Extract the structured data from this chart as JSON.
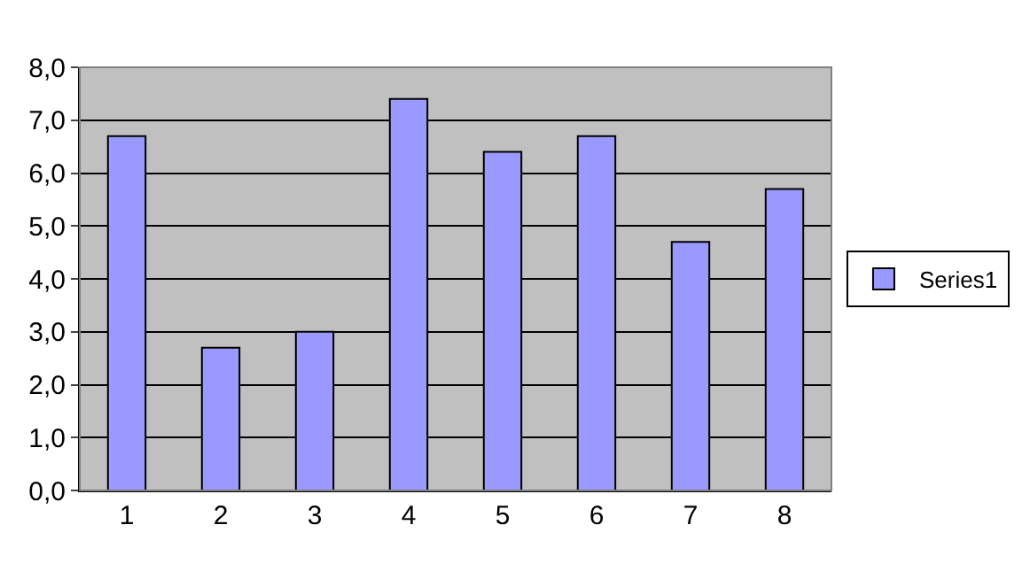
{
  "chart_data": {
    "type": "bar",
    "categories": [
      "1",
      "2",
      "3",
      "4",
      "5",
      "6",
      "7",
      "8"
    ],
    "series": [
      {
        "name": "Series1",
        "color": "#9999ff",
        "values": [
          6.7,
          2.7,
          3.0,
          7.4,
          6.4,
          6.7,
          4.7,
          5.7
        ]
      }
    ],
    "ylim": [
      0,
      8
    ],
    "yticks": [
      {
        "value": 0,
        "label": "0,0"
      },
      {
        "value": 1,
        "label": "1,0"
      },
      {
        "value": 2,
        "label": "2,0"
      },
      {
        "value": 3,
        "label": "3,0"
      },
      {
        "value": 4,
        "label": "4,0"
      },
      {
        "value": 5,
        "label": "5,0"
      },
      {
        "value": 6,
        "label": "6,0"
      },
      {
        "value": 7,
        "label": "7,0"
      },
      {
        "value": 8,
        "label": "8,0"
      }
    ],
    "grid": "y",
    "legend": "right"
  }
}
